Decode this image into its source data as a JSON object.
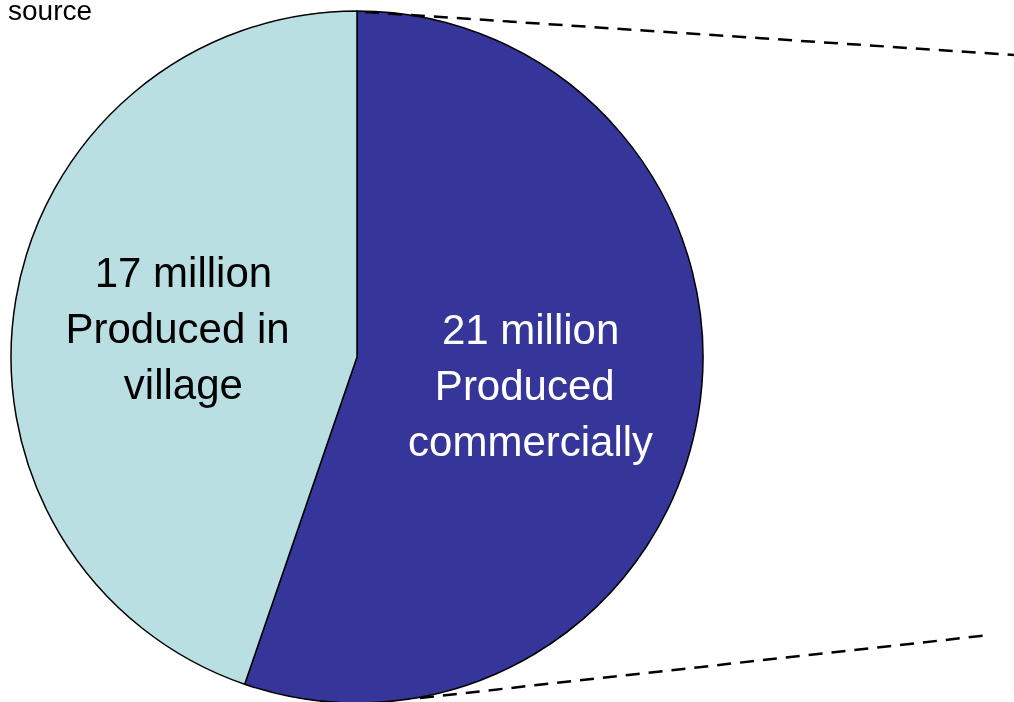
{
  "chart_data": {
    "type": "pie",
    "categories": [
      "Produced commercially",
      "Produced in village"
    ],
    "values": [
      21,
      17
    ],
    "value_labels": [
      "21 million",
      "17 million"
    ],
    "colors": [
      "#36369a",
      "#b9dfe3"
    ],
    "annotations": [
      "source"
    ],
    "legend": false
  }
}
